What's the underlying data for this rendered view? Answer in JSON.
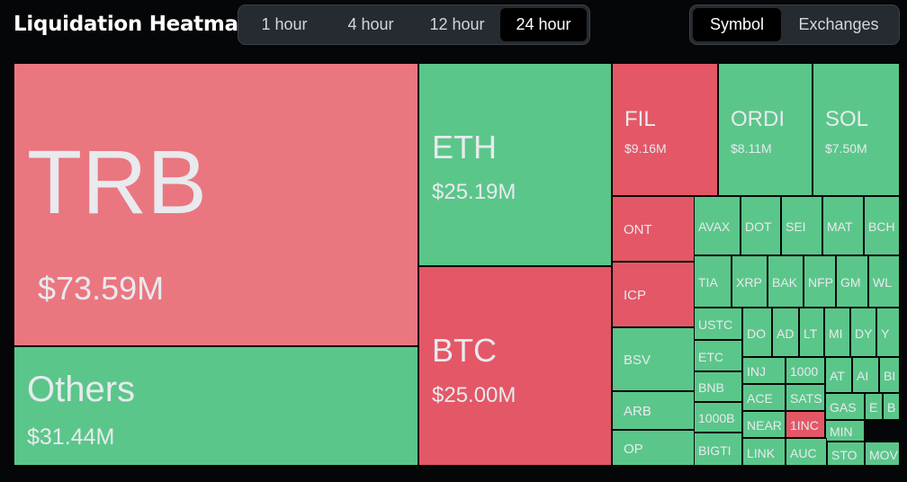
{
  "header": {
    "title": "Liquidation Heatmap"
  },
  "time_ranges": [
    {
      "label": "1 hour",
      "active": false
    },
    {
      "label": "4 hour",
      "active": false
    },
    {
      "label": "12 hour",
      "active": false
    },
    {
      "label": "24 hour",
      "active": true
    }
  ],
  "view_modes": [
    {
      "label": "Symbol",
      "active": true
    },
    {
      "label": "Exchanges",
      "active": false
    }
  ],
  "colors": {
    "long_liq": "#5bc68a",
    "short_liq": "#e45766",
    "largest": "#ea7780",
    "background": "#050608"
  },
  "heatmap": {
    "large": [
      {
        "symbol": "TRB",
        "value": "$73.59M",
        "color": "pink"
      },
      {
        "symbol": "Others",
        "value": "$31.44M",
        "color": "green"
      },
      {
        "symbol": "ETH",
        "value": "$25.19M",
        "color": "green"
      },
      {
        "symbol": "BTC",
        "value": "$25.00M",
        "color": "red"
      },
      {
        "symbol": "FIL",
        "value": "$9.16M",
        "color": "red"
      },
      {
        "symbol": "ORDI",
        "value": "$8.11M",
        "color": "green"
      },
      {
        "symbol": "SOL",
        "value": "$7.50M",
        "color": "green"
      }
    ],
    "small": [
      {
        "symbol": "ONT",
        "color": "red"
      },
      {
        "symbol": "ICP",
        "color": "red"
      },
      {
        "symbol": "BSV",
        "color": "green"
      },
      {
        "symbol": "ARB",
        "color": "green"
      },
      {
        "symbol": "OP",
        "color": "green"
      },
      {
        "symbol": "AVAX",
        "color": "green"
      },
      {
        "symbol": "DOT",
        "color": "green"
      },
      {
        "symbol": "SEI",
        "color": "green"
      },
      {
        "symbol": "MAT",
        "color": "green"
      },
      {
        "symbol": "BCH",
        "color": "green"
      },
      {
        "symbol": "TIA",
        "color": "green"
      },
      {
        "symbol": "XRP",
        "color": "green"
      },
      {
        "symbol": "BAK",
        "color": "green"
      },
      {
        "symbol": "NFP",
        "color": "green"
      },
      {
        "symbol": "GM",
        "color": "green"
      },
      {
        "symbol": "WL",
        "color": "green"
      },
      {
        "symbol": "USTC",
        "color": "green"
      },
      {
        "symbol": "DO",
        "color": "green"
      },
      {
        "symbol": "AD",
        "color": "green"
      },
      {
        "symbol": "LT",
        "color": "green"
      },
      {
        "symbol": "MI",
        "color": "green"
      },
      {
        "symbol": "DY",
        "color": "green"
      },
      {
        "symbol": "Y",
        "color": "green"
      },
      {
        "symbol": "ETC",
        "color": "green"
      },
      {
        "symbol": "INJ",
        "color": "green"
      },
      {
        "symbol": "1000",
        "color": "green"
      },
      {
        "symbol": "AT",
        "color": "green"
      },
      {
        "symbol": "AI",
        "color": "green"
      },
      {
        "symbol": "BI",
        "color": "green"
      },
      {
        "symbol": "BNB",
        "color": "green"
      },
      {
        "symbol": "ACE",
        "color": "green"
      },
      {
        "symbol": "SATS",
        "color": "green"
      },
      {
        "symbol": "1000B",
        "color": "green"
      },
      {
        "symbol": "NEAR",
        "color": "green"
      },
      {
        "symbol": "1INC",
        "color": "red"
      },
      {
        "symbol": "GAS",
        "color": "green"
      },
      {
        "symbol": "E",
        "color": "green"
      },
      {
        "symbol": "B",
        "color": "green"
      },
      {
        "symbol": "MIN",
        "color": "green"
      },
      {
        "symbol": "BIGTI",
        "color": "green"
      },
      {
        "symbol": "LINK",
        "color": "green"
      },
      {
        "symbol": "AUC",
        "color": "green"
      },
      {
        "symbol": "STO",
        "color": "green"
      },
      {
        "symbol": "MOV",
        "color": "green"
      }
    ]
  }
}
